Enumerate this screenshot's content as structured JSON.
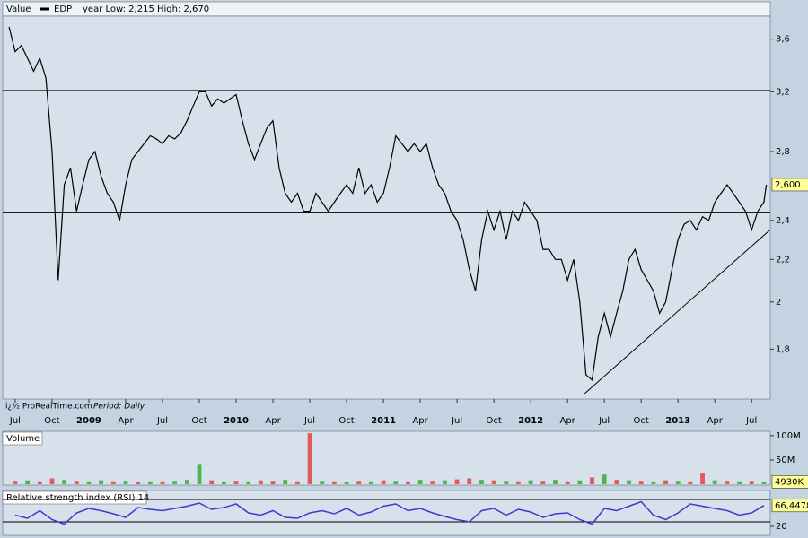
{
  "chart_data": [
    {
      "type": "line",
      "title": "Value",
      "subtitle": "year Low: 2,215 High: 2,670",
      "watermark": "i¿½ ProRealTime.com",
      "period": "Period: Daily",
      "log_scale": true,
      "xlim": [
        -1.02,
        61.52
      ],
      "ylim": [
        1.61,
        3.79
      ],
      "xticks": [
        {
          "value": 0,
          "label": "Jul"
        },
        {
          "value": 3,
          "label": "Oct"
        },
        {
          "value": 6,
          "label": "2009"
        },
        {
          "value": 9,
          "label": "Apr"
        },
        {
          "value": 12,
          "label": "Jul"
        },
        {
          "value": 15,
          "label": "Oct"
        },
        {
          "value": 18,
          "label": "2010"
        },
        {
          "value": 21,
          "label": "Apr"
        },
        {
          "value": 24,
          "label": "Jul"
        },
        {
          "value": 27,
          "label": "Oct"
        },
        {
          "value": 30,
          "label": "2011"
        },
        {
          "value": 33,
          "label": "Apr"
        },
        {
          "value": 36,
          "label": "Jul"
        },
        {
          "value": 39,
          "label": "Oct"
        },
        {
          "value": 42,
          "label": "2012"
        },
        {
          "value": 45,
          "label": "Apr"
        },
        {
          "value": 48,
          "label": "Jul"
        },
        {
          "value": 51,
          "label": "Oct"
        },
        {
          "value": 54,
          "label": "2013"
        },
        {
          "value": 57,
          "label": "Apr"
        },
        {
          "value": 60,
          "label": "Jul"
        }
      ],
      "yticks": [
        {
          "value": 3.6,
          "label": "3,6"
        },
        {
          "value": 3.2,
          "label": "3,2"
        },
        {
          "value": 2.8,
          "label": "2,8"
        },
        {
          "value": 2.4,
          "label": "2,4"
        },
        {
          "value": 2.2,
          "label": "2,2"
        },
        2,
        {
          "value": 1.8,
          "label": "1,8"
        }
      ],
      "hlines": [
        3.21,
        2.49,
        2.445
      ],
      "trendline": [
        [
          46.4,
          1.63
        ],
        [
          61.5,
          2.35
        ]
      ],
      "last_label": "2,600",
      "x": [
        -0.5,
        0,
        0.5,
        1,
        1.5,
        2,
        2.5,
        3,
        3.5,
        4,
        4.5,
        5,
        5.5,
        6,
        6.5,
        7,
        7.5,
        8,
        8.5,
        9,
        9.5,
        10,
        10.5,
        11,
        11.5,
        12,
        12.5,
        13,
        13.5,
        14,
        14.5,
        15,
        15.5,
        16,
        16.5,
        17,
        17.5,
        18,
        18.5,
        19,
        19.5,
        20,
        20.5,
        21,
        21.5,
        22,
        22.5,
        23,
        23.5,
        24,
        24.5,
        25,
        25.5,
        26,
        26.5,
        27,
        27.5,
        28,
        28.5,
        29,
        29.5,
        30,
        30.5,
        31,
        31.5,
        32,
        32.5,
        33,
        33.5,
        34,
        34.5,
        35,
        35.5,
        36,
        36.5,
        37,
        37.5,
        38,
        38.5,
        39,
        39.5,
        40,
        40.5,
        41,
        41.5,
        42,
        42.5,
        43,
        43.5,
        44,
        44.5,
        45,
        45.5,
        46,
        46.5,
        47,
        47.5,
        48,
        48.5,
        49,
        49.5,
        50,
        50.5,
        51,
        51.5,
        52,
        52.5,
        53,
        53.5,
        54,
        54.5,
        55,
        55.5,
        56,
        56.5,
        57,
        57.5,
        58,
        58.5,
        59,
        59.5,
        60,
        60.5,
        61,
        61.2
      ],
      "series": [
        {
          "name": "EDP",
          "color": "#000000",
          "values": [
            3.7,
            3.5,
            3.55,
            3.45,
            3.35,
            3.45,
            3.3,
            2.8,
            2.1,
            2.6,
            2.7,
            2.45,
            2.6,
            2.75,
            2.8,
            2.65,
            2.55,
            2.5,
            2.4,
            2.6,
            2.75,
            2.8,
            2.85,
            2.9,
            2.88,
            2.85,
            2.9,
            2.88,
            2.92,
            3.0,
            3.1,
            3.2,
            3.2,
            3.1,
            3.15,
            3.12,
            3.15,
            3.18,
            3.0,
            2.85,
            2.75,
            2.85,
            2.95,
            3.0,
            2.7,
            2.55,
            2.5,
            2.55,
            2.45,
            2.45,
            2.55,
            2.5,
            2.45,
            2.5,
            2.55,
            2.6,
            2.55,
            2.7,
            2.55,
            2.6,
            2.5,
            2.55,
            2.7,
            2.9,
            2.85,
            2.8,
            2.85,
            2.8,
            2.85,
            2.7,
            2.6,
            2.55,
            2.45,
            2.4,
            2.3,
            2.15,
            2.05,
            2.3,
            2.45,
            2.35,
            2.45,
            2.3,
            2.45,
            2.4,
            2.5,
            2.45,
            2.4,
            2.25,
            2.25,
            2.2,
            2.2,
            2.1,
            2.2,
            2.0,
            1.7,
            1.68,
            1.85,
            1.95,
            1.85,
            1.95,
            2.05,
            2.2,
            2.25,
            2.15,
            2.1,
            2.05,
            1.95,
            2.0,
            2.15,
            2.3,
            2.38,
            2.4,
            2.35,
            2.42,
            2.4,
            2.5,
            2.55,
            2.6,
            2.55,
            2.5,
            2.45,
            2.35,
            2.45,
            2.5,
            2.6
          ]
        }
      ]
    },
    {
      "type": "bar",
      "title": "Volume",
      "xlim": [
        -1.02,
        61.52
      ],
      "ylim": [
        0,
        109
      ],
      "yticks": [
        {
          "value": 100,
          "label": "100M"
        },
        {
          "value": 50,
          "label": "50M"
        }
      ],
      "last_label": "4930K",
      "x": [
        0,
        1,
        2,
        3,
        4,
        5,
        6,
        7,
        8,
        9,
        10,
        11,
        12,
        13,
        14,
        15,
        16,
        17,
        18,
        19,
        20,
        21,
        22,
        23,
        24,
        25,
        26,
        27,
        28,
        29,
        30,
        31,
        32,
        33,
        34,
        35,
        36,
        37,
        38,
        39,
        40,
        41,
        42,
        43,
        44,
        45,
        46,
        47,
        48,
        49,
        50,
        51,
        52,
        53,
        54,
        55,
        56,
        57,
        58,
        59,
        60,
        61
      ],
      "values": [
        7,
        8,
        6,
        12,
        9,
        7,
        6,
        8,
        6,
        7,
        5,
        6,
        6,
        7,
        9,
        40,
        8,
        6,
        7,
        6,
        8,
        7,
        9,
        6,
        105,
        7,
        6,
        5,
        7,
        6,
        8,
        7,
        6,
        9,
        7,
        8,
        10,
        12,
        9,
        8,
        7,
        6,
        8,
        7,
        9,
        6,
        8,
        14,
        20,
        9,
        8,
        7,
        6,
        8,
        7,
        6,
        22,
        8,
        7,
        6,
        7,
        4.93
      ],
      "colors": [
        "#e05a5a",
        "#4cb84c",
        "#e05a5a",
        "#e05a5a",
        "#4cb84c",
        "#e05a5a",
        "#4cb84c",
        "#4cb84c",
        "#e05a5a",
        "#4cb84c",
        "#e05a5a",
        "#4cb84c",
        "#e05a5a",
        "#4cb84c",
        "#4cb84c",
        "#4cb84c",
        "#e05a5a",
        "#4cb84c",
        "#e05a5a",
        "#4cb84c",
        "#e05a5a",
        "#e05a5a",
        "#4cb84c",
        "#e05a5a",
        "#e05a5a",
        "#4cb84c",
        "#e05a5a",
        "#4cb84c",
        "#e05a5a",
        "#4cb84c",
        "#e05a5a",
        "#4cb84c",
        "#e05a5a",
        "#4cb84c",
        "#e05a5a",
        "#4cb84c",
        "#e05a5a",
        "#e05a5a",
        "#4cb84c",
        "#e05a5a",
        "#4cb84c",
        "#e05a5a",
        "#4cb84c",
        "#e05a5a",
        "#4cb84c",
        "#e05a5a",
        "#4cb84c",
        "#e05a5a",
        "#4cb84c",
        "#e05a5a",
        "#4cb84c",
        "#e05a5a",
        "#4cb84c",
        "#e05a5a",
        "#4cb84c",
        "#e05a5a",
        "#e05a5a",
        "#4cb84c",
        "#e05a5a",
        "#4cb84c",
        "#e05a5a",
        "#4cb84c"
      ]
    },
    {
      "type": "line",
      "title": "Relative strength index (RSI) 14",
      "xlim": [
        -1.02,
        61.52
      ],
      "ylim": [
        0,
        100
      ],
      "yticks": [
        20
      ],
      "hlines": [
        80,
        30
      ],
      "last_label": "66,4478",
      "x": [
        0,
        1,
        2,
        3,
        4,
        5,
        6,
        7,
        8,
        9,
        10,
        11,
        12,
        13,
        14,
        15,
        16,
        17,
        18,
        19,
        20,
        21,
        22,
        23,
        24,
        25,
        26,
        27,
        28,
        29,
        30,
        31,
        32,
        33,
        34,
        35,
        36,
        37,
        38,
        39,
        40,
        41,
        42,
        43,
        44,
        45,
        46,
        47,
        48,
        49,
        50,
        51,
        52,
        53,
        54,
        55,
        56,
        57,
        58,
        59,
        60,
        61
      ],
      "series": [
        {
          "color": "#3a3ad0",
          "values": [
            45,
            38,
            55,
            35,
            25,
            50,
            60,
            55,
            48,
            40,
            62,
            58,
            55,
            60,
            65,
            72,
            58,
            62,
            70,
            50,
            45,
            55,
            40,
            38,
            50,
            55,
            48,
            60,
            45,
            52,
            65,
            70,
            55,
            60,
            50,
            42,
            35,
            30,
            55,
            60,
            45,
            58,
            52,
            40,
            48,
            50,
            35,
            25,
            60,
            55,
            65,
            75,
            45,
            35,
            50,
            70,
            65,
            60,
            55,
            45,
            50,
            66.4478
          ]
        }
      ]
    }
  ]
}
